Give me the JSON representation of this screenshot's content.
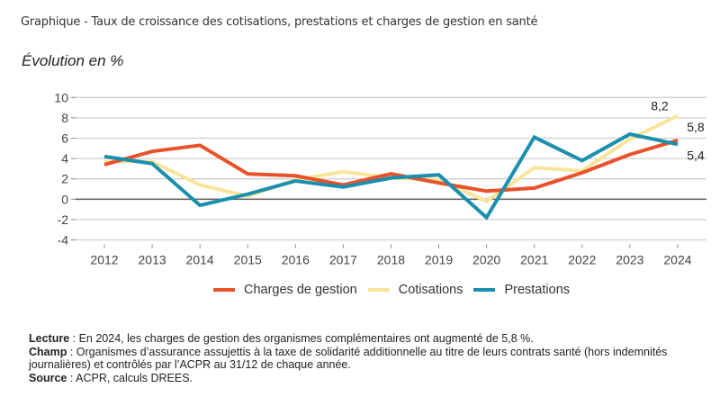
{
  "header": {
    "figure_title": "Graphique - Taux de croissance des cotisations, prestations et charges de gestion en santé",
    "unit_label": "Évolution en %"
  },
  "chart_data": {
    "type": "line",
    "title": "Taux de croissance des cotisations, prestations et charges de gestion en santé",
    "ylabel": "Évolution en %",
    "xlabel": "",
    "x": [
      "2012",
      "2013",
      "2014",
      "2015",
      "2016",
      "2017",
      "2018",
      "2019",
      "2020",
      "2021",
      "2022",
      "2023",
      "2024"
    ],
    "ylim": [
      -4,
      10
    ],
    "yticks": [
      -4,
      -2,
      0,
      2,
      4,
      6,
      8,
      10
    ],
    "ytick_labels": [
      "-4",
      "-2",
      "0",
      "2",
      "4",
      "6",
      "8",
      "10"
    ],
    "grid": true,
    "legend_position": "bottom",
    "series": [
      {
        "name": "Charges de gestion",
        "color": "#E8522A",
        "values": [
          3.4,
          4.7,
          5.3,
          2.5,
          2.3,
          1.4,
          2.5,
          1.6,
          0.8,
          1.1,
          2.6,
          4.4,
          5.8
        ]
      },
      {
        "name": "Cotisations",
        "color": "#F8E49A",
        "values": [
          3.7,
          3.7,
          1.4,
          0.3,
          1.9,
          2.7,
          2.1,
          1.9,
          -0.2,
          3.1,
          2.8,
          5.9,
          8.2
        ]
      },
      {
        "name": "Prestations",
        "color": "#1A8FAE",
        "values": [
          4.2,
          3.5,
          -0.6,
          0.5,
          1.8,
          1.2,
          2.1,
          2.4,
          -1.8,
          6.1,
          3.8,
          6.4,
          5.4
        ]
      }
    ],
    "annotations": [
      {
        "series": "Cotisations",
        "x": "2024",
        "text": "8,2"
      },
      {
        "series": "Charges de gestion",
        "x": "2024",
        "text": "5,8"
      },
      {
        "series": "Prestations",
        "x": "2024",
        "text": "5,4"
      }
    ]
  },
  "notes": {
    "lecture_label": "Lecture",
    "lecture_text": " : En 2024, les charges de gestion des organismes complémentaires ont augmenté de 5,8 %.",
    "champ_label": "Champ",
    "champ_text": " : Organismes d’assurance assujettis à la taxe de solidarité additionnelle au titre de leurs contrats santé (hors indemnités journalières) et contrôlés par l’ACPR au 31/12 de chaque année.",
    "source_label": "Source",
    "source_text": " : ACPR, calculs DREES."
  }
}
